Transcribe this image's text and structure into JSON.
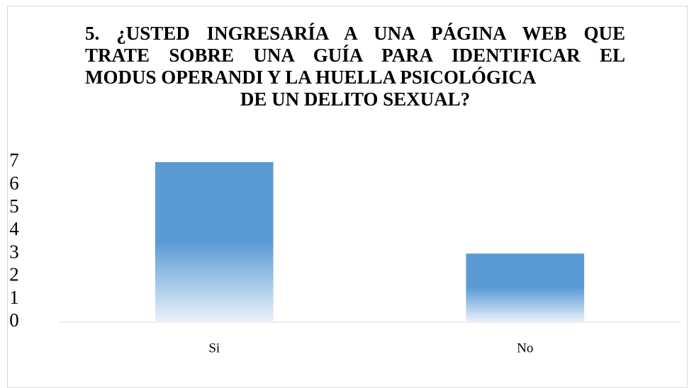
{
  "chart_data": {
    "type": "bar",
    "title": [
      "5. ¿USTED INGRESARÍA A UNA PÁGINA WEB QUE",
      "TRATE SOBRE UNA GUÍA PARA IDENTIFICAR EL",
      "MODUS OPERANDI Y LA HUELLA PSICOLÓGICA",
      "DE UN DELITO SEXUAL?"
    ],
    "categories": [
      "Si",
      "No"
    ],
    "values": [
      7,
      3
    ],
    "color": "#5b9bd5",
    "ylim": [
      0,
      7
    ],
    "yticks": [
      0,
      1,
      2,
      3,
      4,
      5,
      6,
      7
    ],
    "grid": false
  }
}
